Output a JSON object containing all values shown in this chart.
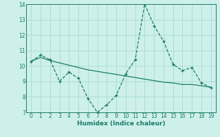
{
  "xlabel": "Humidex (Indice chaleur)",
  "x": [
    0,
    1,
    2,
    3,
    4,
    5,
    6,
    7,
    8,
    9,
    10,
    11,
    12,
    13,
    14,
    15,
    16,
    17,
    18,
    19
  ],
  "y_line": [
    10.3,
    10.7,
    10.4,
    9.0,
    9.6,
    9.2,
    7.9,
    7.0,
    7.5,
    8.1,
    9.5,
    10.4,
    14.0,
    12.6,
    11.6,
    10.1,
    9.7,
    9.9,
    8.9,
    8.6
  ],
  "y_trend": [
    10.3,
    10.55,
    10.35,
    10.2,
    10.05,
    9.9,
    9.75,
    9.65,
    9.55,
    9.45,
    9.35,
    9.25,
    9.15,
    9.05,
    8.95,
    8.9,
    8.8,
    8.8,
    8.72,
    8.62
  ],
  "line_color": "#1a7a6a",
  "bg_color": "#cef0ea",
  "grid_color": "#aaddd6",
  "ylim": [
    7,
    14
  ],
  "xlim_min": -0.5,
  "xlim_max": 19.5,
  "yticks": [
    7,
    8,
    9,
    10,
    11,
    12,
    13,
    14
  ],
  "xticks": [
    0,
    1,
    2,
    3,
    4,
    5,
    6,
    7,
    8,
    9,
    10,
    11,
    12,
    13,
    14,
    15,
    16,
    17,
    18,
    19
  ],
  "tick_fontsize": 5.5,
  "xlabel_fontsize": 6.5
}
